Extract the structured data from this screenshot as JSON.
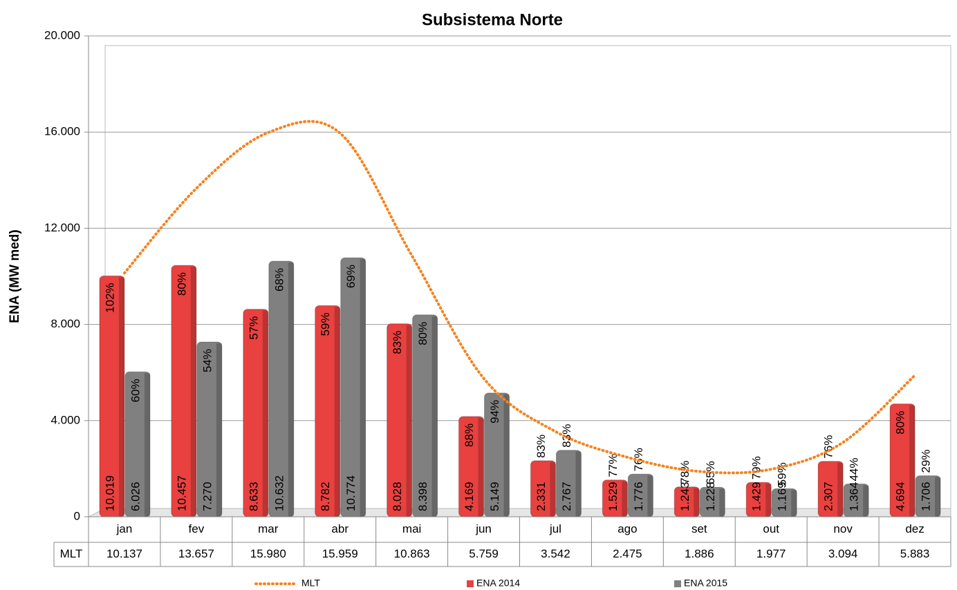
{
  "chart_data": {
    "type": "bar",
    "title": "Subsistema Norte",
    "y_label": "ENA (MW med)",
    "categories": [
      "jan",
      "fev",
      "mar",
      "abr",
      "mai",
      "jun",
      "jul",
      "ago",
      "set",
      "out",
      "nov",
      "dez"
    ],
    "series": [
      {
        "name": "MLT",
        "type": "line",
        "color": "#f7821e",
        "values": [
          10137,
          13657,
          15980,
          15959,
          10863,
          5759,
          3542,
          2475,
          1886,
          1977,
          3094,
          5883
        ],
        "value_labels": [
          "10.137",
          "13.657",
          "15.980",
          "15.959",
          "10.863",
          "5.759",
          "3.542",
          "2.475",
          "1.886",
          "1.977",
          "3.094",
          "5.883"
        ]
      },
      {
        "name": "ENA 2014",
        "type": "bar",
        "color": "#e8413f",
        "values": [
          10019,
          10457,
          8633,
          8782,
          8028,
          4169,
          2331,
          1529,
          1243,
          1429,
          2307,
          4694
        ],
        "value_labels": [
          "10.019",
          "10.457",
          "8.633",
          "8.782",
          "8.028",
          "4.169",
          "2.331",
          "1.529",
          "1.243",
          "1.429",
          "2.307",
          "4.694"
        ],
        "percent_labels": [
          "102%",
          "80%",
          "57%",
          "59%",
          "83%",
          "88%",
          "83%",
          "77%",
          "78%",
          "79%",
          "76%",
          "80%"
        ]
      },
      {
        "name": "ENA 2015",
        "type": "bar",
        "color": "#808080",
        "values": [
          6026,
          7270,
          10632,
          10774,
          8398,
          5149,
          2767,
          1776,
          1228,
          1169,
          1364,
          1706
        ],
        "value_labels": [
          "6.026",
          "7.270",
          "10.632",
          "10.774",
          "8.398",
          "5.149",
          "2.767",
          "1.776",
          "1.228",
          "1.169",
          "1.364",
          "1.706"
        ],
        "percent_labels": [
          "60%",
          "54%",
          "68%",
          "69%",
          "80%",
          "94%",
          "83%",
          "76%",
          "65%",
          "59%",
          "44%",
          "29%"
        ]
      }
    ],
    "ylim": [
      0,
      20000
    ],
    "yticks": [
      0,
      {
        "value": 4000,
        "label": "4.000"
      },
      {
        "value": 8000,
        "label": "8.000"
      },
      {
        "value": 12000,
        "label": "12.000"
      },
      {
        "value": 16000,
        "label": "16.000"
      },
      {
        "value": 20000,
        "label": "20.000"
      }
    ],
    "grid": true
  }
}
